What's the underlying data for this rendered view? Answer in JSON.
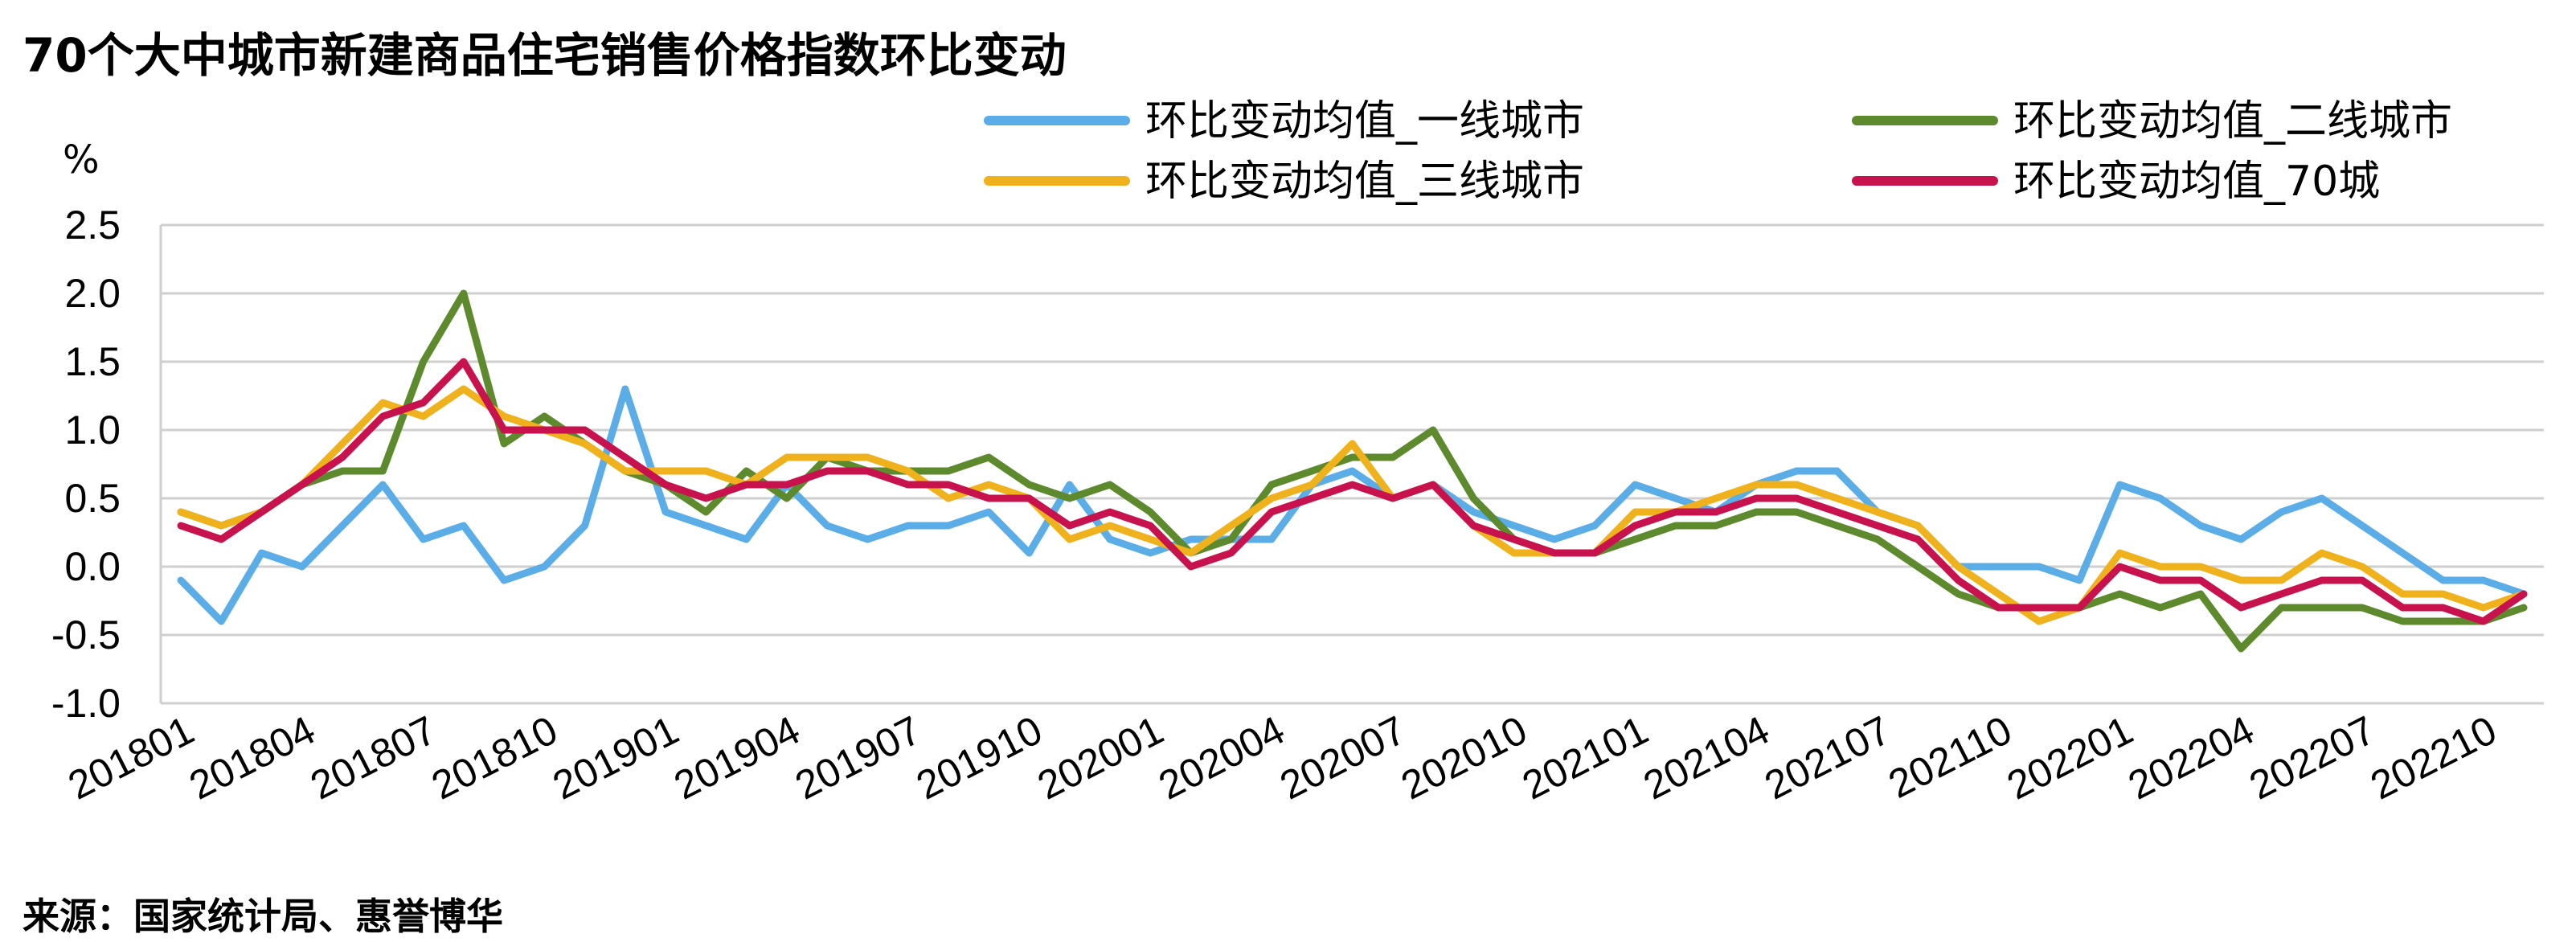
{
  "title": "70个大中城市新建商品住宅销售价格指数环比变动",
  "source": "来源：国家统计局、惠誉博华",
  "chart_data": {
    "type": "line",
    "ylabel": "%",
    "ylim": [
      -1.0,
      2.5
    ],
    "yticks": [
      "2.5",
      "2.0",
      "1.5",
      "1.0",
      "0.5",
      "0.0",
      "-0.5",
      "-1.0"
    ],
    "grid": "horizontal",
    "legend_position": "top",
    "x": [
      "201801",
      "201802",
      "201803",
      "201804",
      "201805",
      "201806",
      "201807",
      "201808",
      "201809",
      "201810",
      "201811",
      "201812",
      "201901",
      "201902",
      "201903",
      "201904",
      "201905",
      "201906",
      "201907",
      "201908",
      "201909",
      "201910",
      "201911",
      "201912",
      "202001",
      "202002",
      "202003",
      "202004",
      "202005",
      "202006",
      "202007",
      "202008",
      "202009",
      "202010",
      "202011",
      "202012",
      "202101",
      "202102",
      "202103",
      "202104",
      "202105",
      "202106",
      "202107",
      "202108",
      "202109",
      "202110",
      "202111",
      "202112",
      "202201",
      "202202",
      "202203",
      "202204",
      "202205",
      "202206",
      "202207",
      "202208",
      "202209",
      "202210",
      "202211"
    ],
    "xtick_labels": [
      "201801",
      "201804",
      "201807",
      "201810",
      "201901",
      "201904",
      "201907",
      "201910",
      "202001",
      "202004",
      "202007",
      "202010",
      "202101",
      "202104",
      "202107",
      "202110",
      "202201",
      "202204",
      "202207",
      "202210"
    ],
    "series": [
      {
        "name": "环比变动均值_一线城市",
        "color": "#5aade6",
        "values": [
          -0.1,
          -0.4,
          0.1,
          0.0,
          0.3,
          0.6,
          0.2,
          0.3,
          -0.1,
          0.0,
          0.3,
          1.3,
          0.4,
          0.3,
          0.2,
          0.6,
          0.3,
          0.2,
          0.3,
          0.3,
          0.4,
          0.1,
          0.6,
          0.2,
          0.1,
          0.2,
          0.2,
          0.2,
          0.6,
          0.7,
          0.5,
          0.6,
          0.4,
          0.3,
          0.2,
          0.3,
          0.6,
          0.5,
          0.4,
          0.6,
          0.7,
          0.7,
          0.4,
          0.3,
          0.0,
          0.0,
          0.0,
          -0.1,
          0.6,
          0.5,
          0.3,
          0.2,
          0.4,
          0.5,
          0.3,
          0.1,
          -0.1,
          -0.1,
          -0.2
        ]
      },
      {
        "name": "环比变动均值_二线城市",
        "color": "#5e8a2e",
        "values": [
          0.4,
          0.3,
          0.4,
          0.6,
          0.7,
          0.7,
          1.5,
          2.0,
          0.9,
          1.1,
          0.9,
          0.7,
          0.6,
          0.4,
          0.7,
          0.5,
          0.8,
          0.7,
          0.7,
          0.7,
          0.8,
          0.6,
          0.5,
          0.6,
          0.4,
          0.1,
          0.2,
          0.6,
          0.7,
          0.8,
          0.8,
          1.0,
          0.5,
          0.2,
          0.1,
          0.1,
          0.2,
          0.3,
          0.3,
          0.4,
          0.4,
          0.3,
          0.2,
          0.0,
          -0.2,
          -0.3,
          -0.3,
          -0.3,
          -0.2,
          -0.3,
          -0.2,
          -0.6,
          -0.3,
          -0.3,
          -0.3,
          -0.4,
          -0.4,
          -0.4,
          -0.3
        ]
      },
      {
        "name": "环比变动均值_三线城市",
        "color": "#f0b21c",
        "values": [
          0.4,
          0.3,
          0.4,
          0.6,
          0.9,
          1.2,
          1.1,
          1.3,
          1.1,
          1.0,
          0.9,
          0.7,
          0.7,
          0.7,
          0.6,
          0.8,
          0.8,
          0.8,
          0.7,
          0.5,
          0.6,
          0.5,
          0.2,
          0.3,
          0.2,
          0.1,
          0.3,
          0.5,
          0.6,
          0.9,
          0.5,
          0.6,
          0.3,
          0.1,
          0.1,
          0.1,
          0.4,
          0.4,
          0.5,
          0.6,
          0.6,
          0.5,
          0.4,
          0.3,
          0.0,
          -0.2,
          -0.4,
          -0.3,
          0.1,
          0.0,
          0.0,
          -0.1,
          -0.1,
          0.1,
          0.0,
          -0.2,
          -0.2,
          -0.3,
          -0.2
        ]
      },
      {
        "name": "环比变动均值_70城",
        "color": "#c8124e",
        "values": [
          0.3,
          0.2,
          0.4,
          0.6,
          0.8,
          1.1,
          1.2,
          1.5,
          1.0,
          1.0,
          1.0,
          0.8,
          0.6,
          0.5,
          0.6,
          0.6,
          0.7,
          0.7,
          0.6,
          0.6,
          0.5,
          0.5,
          0.3,
          0.4,
          0.3,
          0.0,
          0.1,
          0.4,
          0.5,
          0.6,
          0.5,
          0.6,
          0.3,
          0.2,
          0.1,
          0.1,
          0.3,
          0.4,
          0.4,
          0.5,
          0.5,
          0.4,
          0.3,
          0.2,
          -0.1,
          -0.3,
          -0.3,
          -0.3,
          0.0,
          -0.1,
          -0.1,
          -0.3,
          -0.2,
          -0.1,
          -0.1,
          -0.3,
          -0.3,
          -0.4,
          -0.2
        ]
      }
    ]
  }
}
